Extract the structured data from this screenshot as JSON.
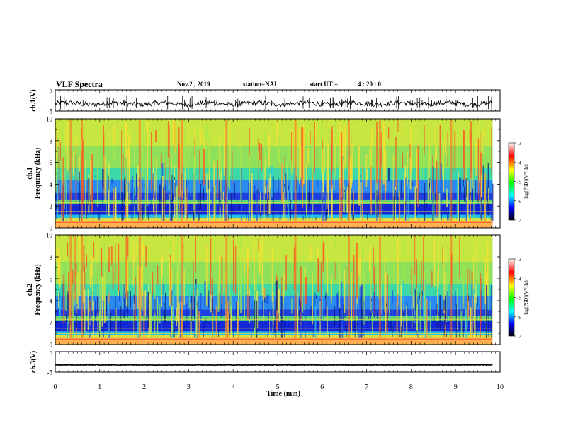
{
  "header": {
    "title": "VLF Spectra",
    "date": "Nov.2  , 2019",
    "station": "station=NAI",
    "start_ut_label": "start  UT  =",
    "start_ut_value": "4 : 20 : 0"
  },
  "colorbar": {
    "label": "log(PSD)(V²/Hz)",
    "ticks": [
      "-3",
      "-4",
      "-5",
      "-6",
      "-7"
    ],
    "colors": [
      "#ffffff",
      "#ff0000",
      "#ffff00",
      "#00ff00",
      "#00ffff",
      "#0000ff",
      "#000000"
    ]
  },
  "chart_data": [
    {
      "type": "line",
      "panel": "ch1-waveform",
      "ylabel": "ch.1(V)",
      "ylim": [
        -5,
        5
      ],
      "yticks": [
        "5",
        "-5"
      ],
      "x_range": [
        0,
        9.83
      ],
      "baseline": -1.5,
      "note_values": "noisy waveform fluctuating roughly between -3 and 1 V"
    },
    {
      "type": "heatmap",
      "panel": "ch1-spectrogram",
      "ylabel": "ch.1\nFrequency (kHz)",
      "ylim": [
        0,
        10
      ],
      "yticks": [
        "0",
        "2",
        "4",
        "6",
        "8",
        "10"
      ],
      "x_range": [
        0,
        9.83
      ],
      "bright_bursts_min": [
        0.35,
        0.6,
        1.9,
        2.85,
        3.85,
        5.4,
        6.6,
        7.3,
        8.9
      ]
    },
    {
      "type": "heatmap",
      "panel": "ch2-spectrogram",
      "ylabel": "ch.2\nFrequency (kHz)",
      "ylim": [
        0,
        10
      ],
      "yticks": [
        "0",
        "2",
        "4",
        "6",
        "8",
        "10"
      ],
      "x_range": [
        0,
        9.83
      ],
      "bright_bursts_min": [
        0.35,
        0.6,
        1.9,
        2.85,
        3.85,
        5.4,
        6.6,
        7.3,
        8.9
      ]
    },
    {
      "type": "line",
      "panel": "ch3-waveform",
      "ylabel": "ch.3(V)",
      "ylim": [
        -5,
        5
      ],
      "yticks": [
        "5",
        "-5"
      ],
      "x_range": [
        0,
        9.83
      ],
      "baseline": -1.5
    }
  ],
  "xaxis": {
    "label": "Time  (min)",
    "ticks": [
      "0",
      "1",
      "2",
      "3",
      "4",
      "5",
      "6",
      "7",
      "8",
      "9",
      "10"
    ],
    "xlim": [
      0,
      10
    ]
  }
}
